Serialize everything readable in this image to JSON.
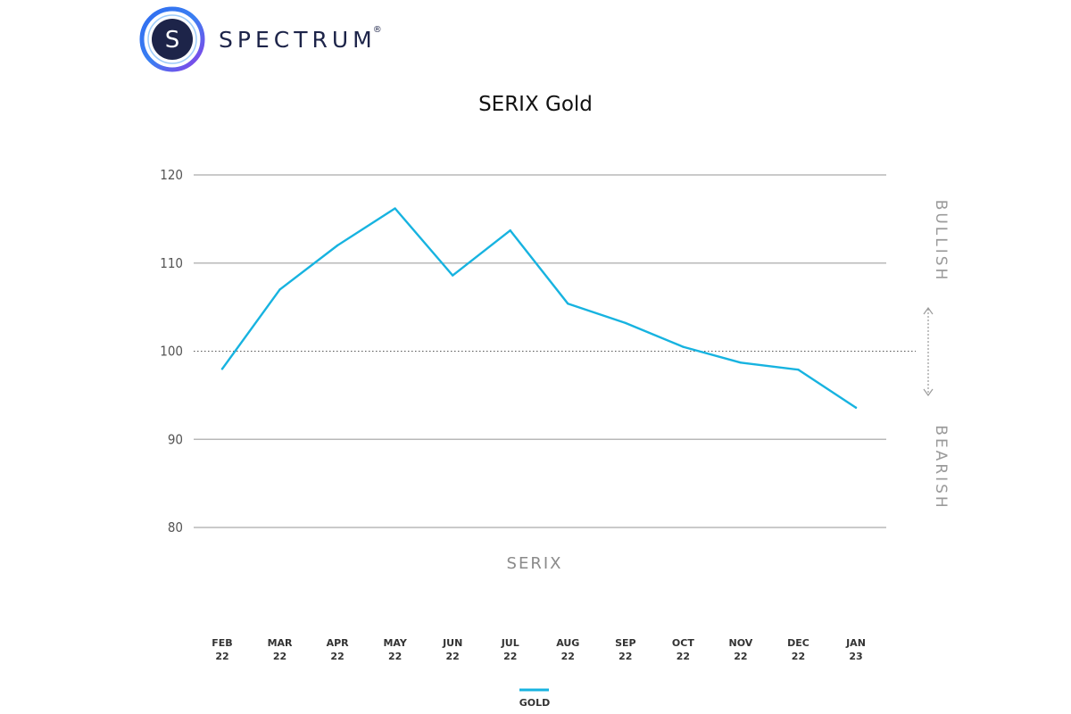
{
  "brand": {
    "name": "SPECTRUM",
    "registered_mark": "®",
    "logo_letter": "S"
  },
  "colors": {
    "line": "#17b3e0",
    "grid": "#b8b8b8",
    "brand_dark": "#1d2449",
    "brand_blue": "#2a5bd7",
    "brand_purple": "#7b3fe4"
  },
  "chart_data": {
    "type": "line",
    "title": "SERIX Gold",
    "xlabel": "SERIX",
    "ylabel": "",
    "categories": [
      [
        "FEB",
        "22"
      ],
      [
        "MAR",
        "22"
      ],
      [
        "APR",
        "22"
      ],
      [
        "MAY",
        "22"
      ],
      [
        "JUN",
        "22"
      ],
      [
        "JUL",
        "22"
      ],
      [
        "AUG",
        "22"
      ],
      [
        "SEP",
        "22"
      ],
      [
        "OCT",
        "22"
      ],
      [
        "NOV",
        "22"
      ],
      [
        "DEC",
        "22"
      ],
      [
        "JAN",
        "23"
      ]
    ],
    "series": [
      {
        "name": "GOLD",
        "values": [
          98.0,
          107.0,
          112.0,
          116.2,
          108.6,
          113.7,
          105.4,
          103.2,
          100.5,
          98.7,
          97.9,
          93.6
        ]
      }
    ],
    "ylim": [
      80,
      120
    ],
    "yticks": [
      80,
      90,
      100,
      110,
      120
    ],
    "reference_line": 100,
    "grid": true,
    "legend_position": "bottom-center",
    "side_labels": {
      "upper": "BULLISH",
      "lower": "BEARISH"
    }
  }
}
